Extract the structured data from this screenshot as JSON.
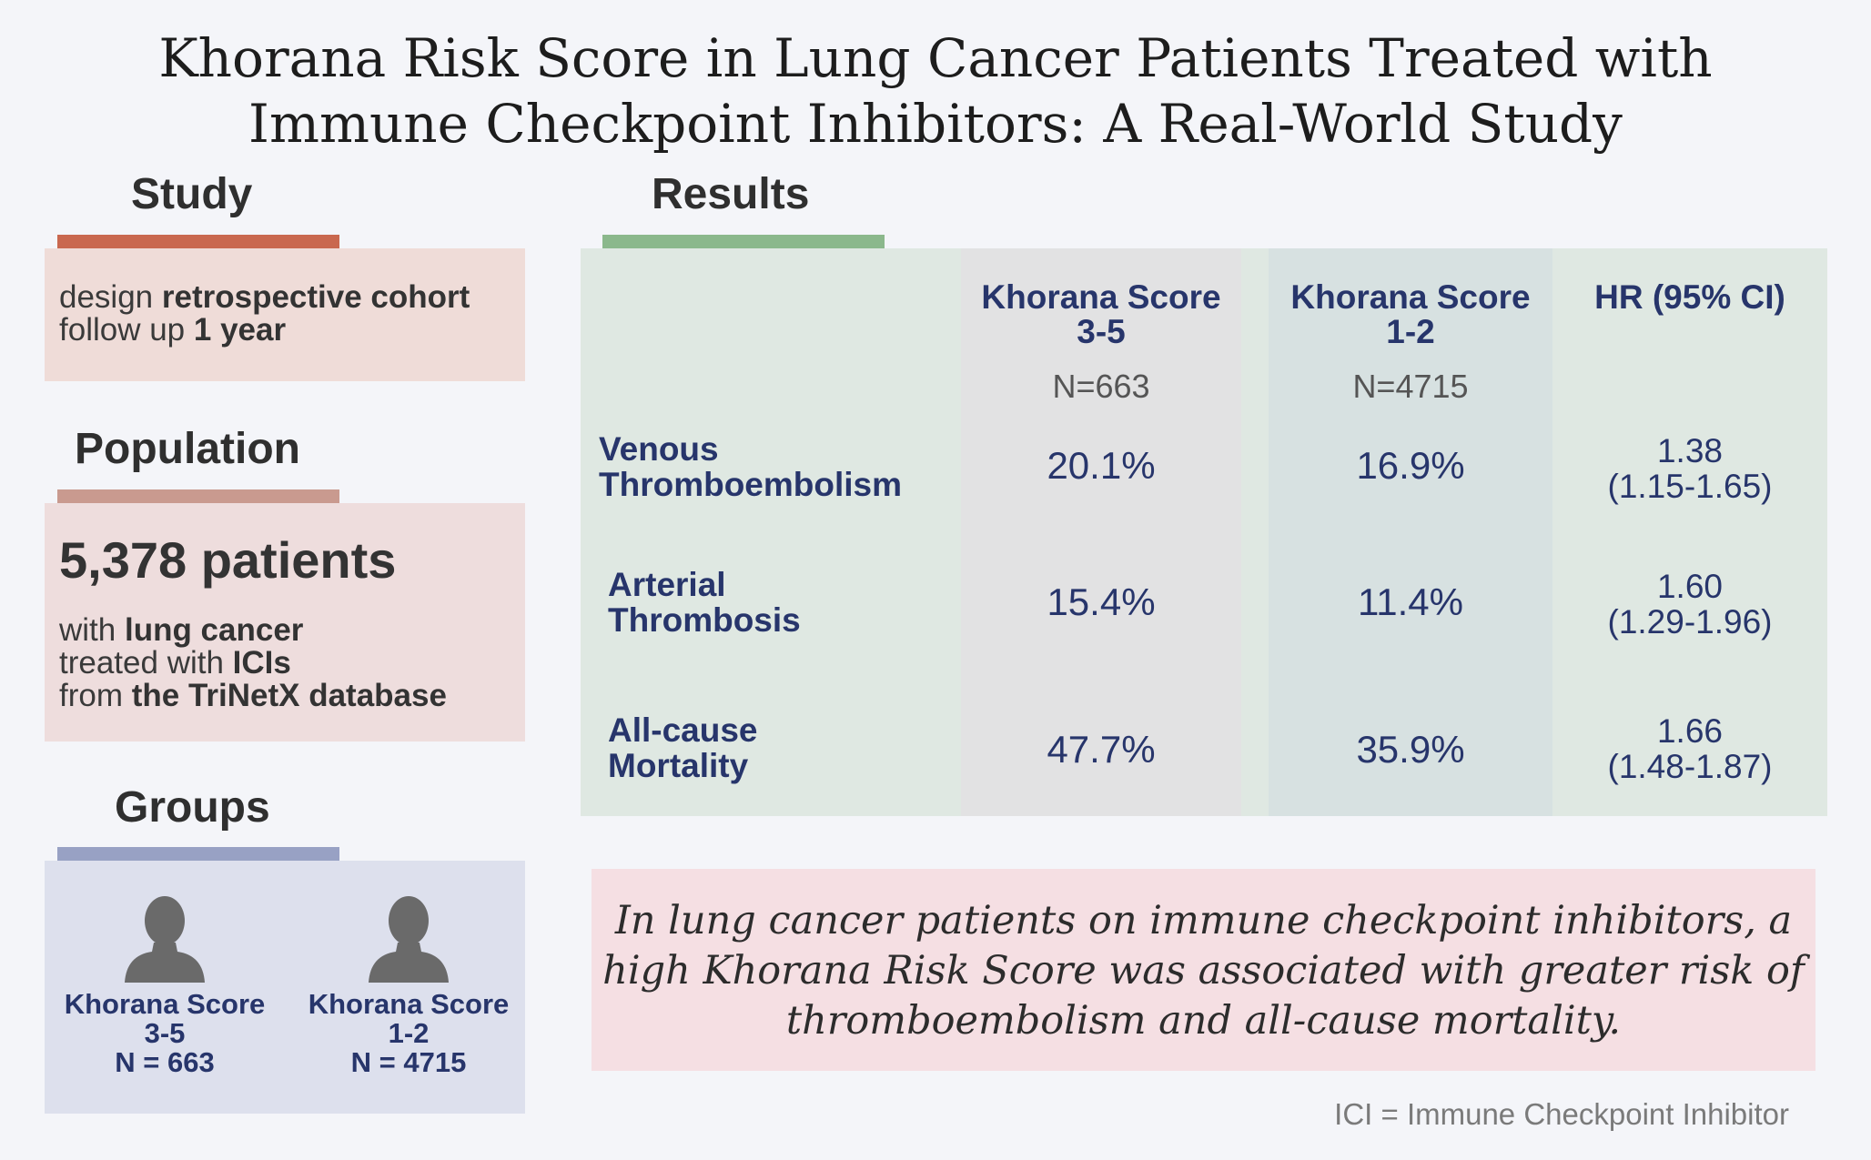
{
  "title": {
    "line1": "Khorana Risk Score in Lung Cancer Patients Treated with",
    "line2": "Immune Checkpoint Inhibitors: A Real-World Study"
  },
  "study": {
    "heading": "Study",
    "design_label": "design ",
    "design_value": "retrospective cohort",
    "followup_label": "follow up ",
    "followup_value": "1 year",
    "bar_color": "#c9684f"
  },
  "population": {
    "heading": "Population",
    "count": "5,378 patients",
    "with_label": "with ",
    "with_value": "lung cancer",
    "treated_label": "treated with ",
    "treated_value": "ICIs",
    "from_label": "from ",
    "from_value": "the TriNetX database",
    "bar_color": "#c99a8f"
  },
  "groups": {
    "heading": "Groups",
    "bar_color": "#98a1c4",
    "icon": "person-icon",
    "items": [
      {
        "line1": "Khorana Score",
        "line2": "3-5",
        "line3": "N = 663"
      },
      {
        "line1": "Khorana Score",
        "line2": "1-2",
        "line3": "N = 4715"
      }
    ]
  },
  "results": {
    "heading": "Results",
    "bar_color": "#8bb88c",
    "columns": [
      {
        "line1": "Khorana Score",
        "line2": "3-5",
        "n": "N=663"
      },
      {
        "line1": "Khorana Score",
        "line2": "1-2",
        "n": "N=4715"
      },
      {
        "line1": "HR (95% CI)"
      }
    ],
    "rows": [
      {
        "label1": "Venous",
        "label2": "Thromboembolism",
        "high": "20.1%",
        "low": "16.9%",
        "hr": "1.38",
        "ci": "(1.15-1.65)"
      },
      {
        "label1": "Arterial",
        "label2": "Thrombosis",
        "high": "15.4%",
        "low": "11.4%",
        "hr": "1.60",
        "ci": "(1.29-1.96)"
      },
      {
        "label1": "All-cause",
        "label2": "Mortality",
        "high": "47.7%",
        "low": "35.9%",
        "hr": "1.66",
        "ci": "(1.48-1.87)"
      }
    ]
  },
  "conclusion": {
    "line1": "In lung cancer patients on immune checkpoint inhibitors, a",
    "line2": "high Khorana Risk Score was associated with greater risk of",
    "line3": "thromboembolism and all-cause mortality."
  },
  "footnote": "ICI = Immune Checkpoint Inhibitor"
}
